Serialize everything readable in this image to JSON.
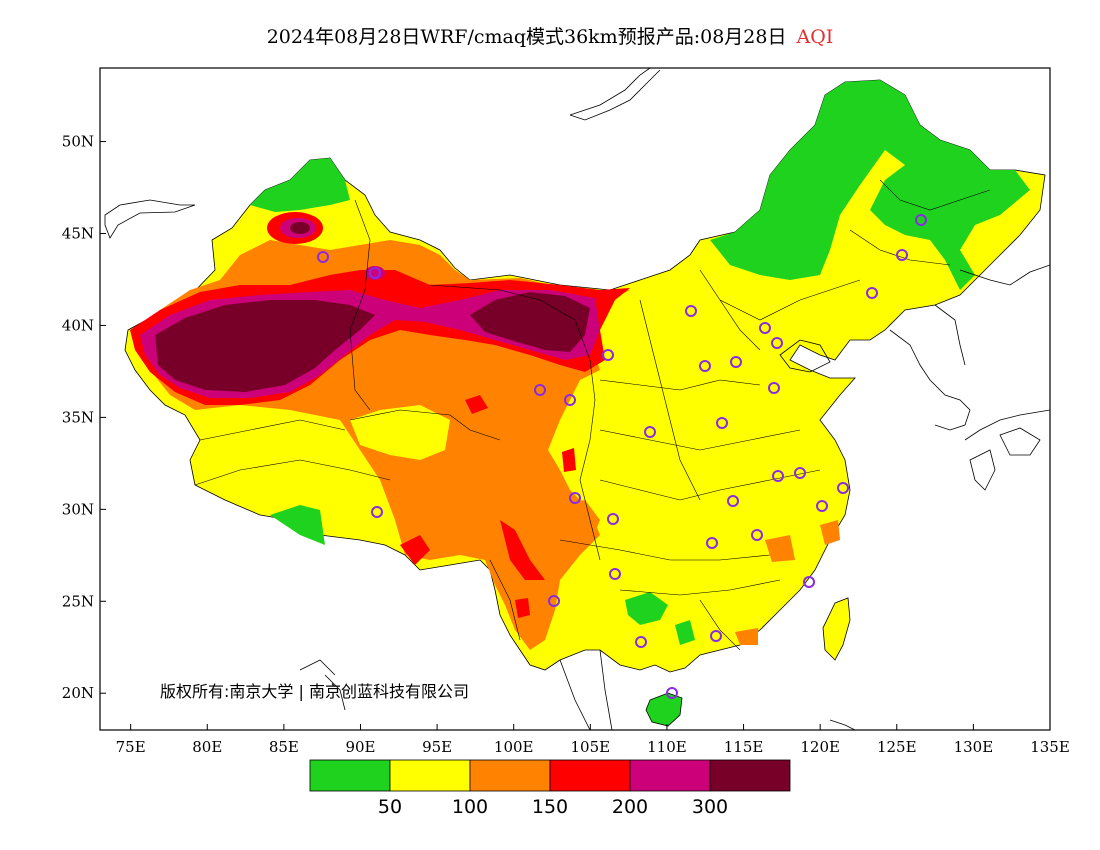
{
  "title": {
    "text": "2024年08月28日WRF/cmaq模式36km预报产品:08月28日",
    "variable": "AQI"
  },
  "copyright": "版权所有:南京大学 | 南京创蓝科技有限公司",
  "axes": {
    "lon_ticks": [
      "75E",
      "80E",
      "85E",
      "90E",
      "95E",
      "100E",
      "105E",
      "110E",
      "115E",
      "120E",
      "125E",
      "130E",
      "135E"
    ],
    "lat_ticks": [
      "20N",
      "25N",
      "30N",
      "35N",
      "40N",
      "45N",
      "50N"
    ],
    "lon_range": [
      73,
      135
    ],
    "lat_range": [
      18,
      54
    ]
  },
  "legend": {
    "colors": [
      "#1ed21e",
      "#ffff00",
      "#ff8200",
      "#ff0000",
      "#cc0078",
      "#780028"
    ],
    "labels": [
      "50",
      "100",
      "150",
      "200",
      "300"
    ]
  },
  "colors": {
    "good": "#1ed21e",
    "moderate": "#ffff00",
    "sensitive": "#ff8200",
    "unhealthy": "#ff0000",
    "very_unhealthy": "#cc0078",
    "hazardous": "#780028",
    "city_marker": "#8a2be2"
  }
}
